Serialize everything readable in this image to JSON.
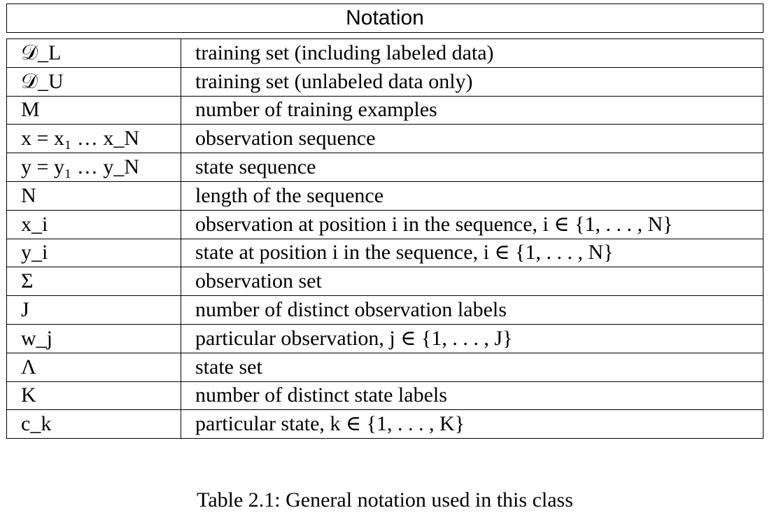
{
  "table": {
    "header": "Notation",
    "rows": [
      {
        "symbol": "𝒟_L",
        "description": "training set (including labeled data)"
      },
      {
        "symbol": "𝒟_U",
        "description": "training set (unlabeled data only)"
      },
      {
        "symbol": "M",
        "description": "number of training examples"
      },
      {
        "symbol": "x = x₁ … x_N",
        "description": "observation sequence"
      },
      {
        "symbol": "y = y₁ … y_N",
        "description": "state sequence"
      },
      {
        "symbol": "N",
        "description": "length of the sequence"
      },
      {
        "symbol": "x_i",
        "description": "observation at position i in the sequence, i ∈ {1, . . . , N}"
      },
      {
        "symbol": "y_i",
        "description": "state at position i in the sequence, i ∈ {1, . . . , N}"
      },
      {
        "symbol": "Σ",
        "description": "observation set"
      },
      {
        "symbol": "J",
        "description": "number of distinct observation labels"
      },
      {
        "symbol": "w_j",
        "description": "particular observation, j ∈ {1, . . . , J}"
      },
      {
        "symbol": "Λ",
        "description": "state set"
      },
      {
        "symbol": "K",
        "description": "number of distinct state labels"
      },
      {
        "symbol": "c_k",
        "description": "particular state, k ∈ {1, . . . , K}"
      }
    ]
  },
  "caption": "Table 2.1: General notation used in this class"
}
